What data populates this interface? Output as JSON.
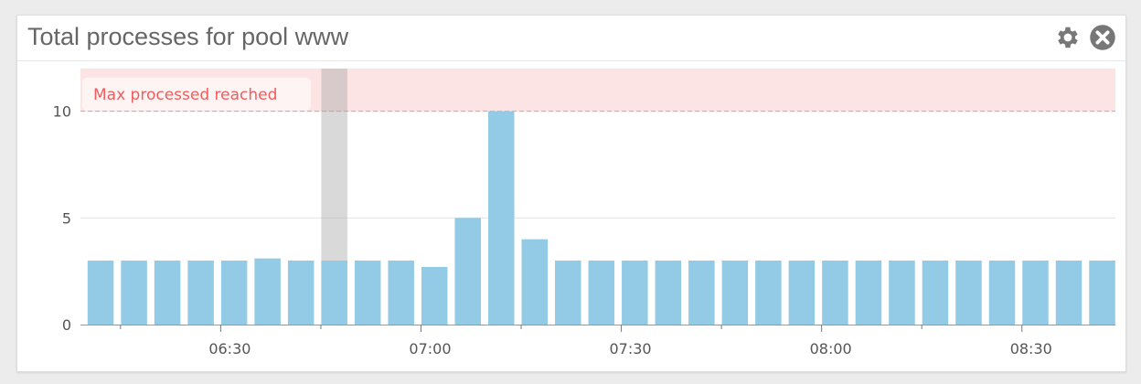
{
  "widget": {
    "title": "Total processes for pool www",
    "settings_icon": "gear-icon",
    "close_icon": "close-circle-icon"
  },
  "chart_data": {
    "type": "bar",
    "title": "Total processes for pool www",
    "x": [
      "06:10",
      "06:15",
      "06:20",
      "06:25",
      "06:30",
      "06:35",
      "06:40",
      "06:45",
      "06:50",
      "06:55",
      "07:00",
      "07:05",
      "07:10",
      "07:15",
      "07:20",
      "07:25",
      "07:30",
      "07:35",
      "07:40",
      "07:45",
      "07:50",
      "07:55",
      "08:00",
      "08:05",
      "08:10",
      "08:15",
      "08:20",
      "08:25",
      "08:30",
      "08:35",
      "08:40"
    ],
    "values": [
      3,
      3,
      3,
      3,
      3,
      3.1,
      3,
      3,
      3,
      3,
      2.7,
      5,
      10,
      4,
      3,
      3,
      3,
      3,
      3,
      3,
      3,
      3,
      3,
      3,
      3,
      3,
      3,
      3,
      3,
      3,
      3
    ],
    "ylim": [
      0,
      12
    ],
    "xlim": [
      "06:09",
      "08:44"
    ],
    "yticks": [
      0,
      5,
      10
    ],
    "xticks": [
      "06:30",
      "07:00",
      "07:30",
      "08:00",
      "08:30"
    ],
    "grid": true,
    "bar_color": "#93cbe6",
    "highlighted_bar": "06:45",
    "marker": {
      "label": "Max processed reached",
      "from": 10,
      "to": 12,
      "color": "#f25c5c",
      "band_color": "#fde4e4"
    }
  }
}
